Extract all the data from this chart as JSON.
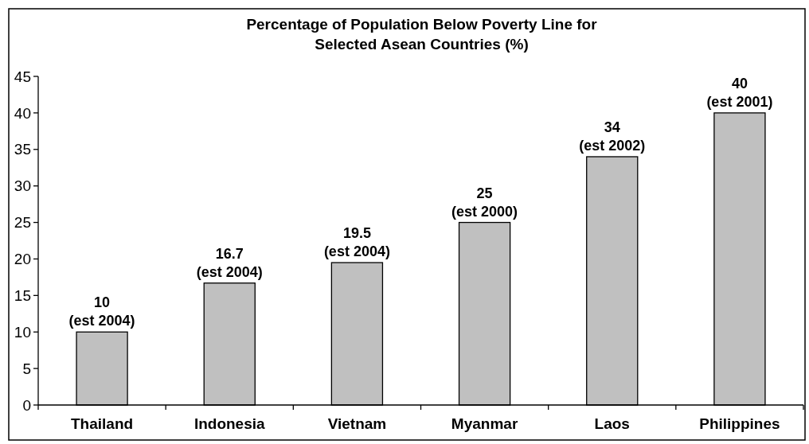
{
  "chart_data": {
    "type": "bar",
    "title": "Percentage of Population Below Poverty Line for\nSelected Asean Countries (%)",
    "categories": [
      "Thailand",
      "Indonesia",
      "Vietnam",
      "Myanmar",
      "Laos",
      "Philippines"
    ],
    "values": [
      10,
      16.7,
      19.5,
      25,
      34,
      40
    ],
    "value_labels": [
      "10\n(est 2004)",
      "16.7\n(est 2004)",
      "19.5\n(est 2004)",
      "25\n(est 2000)",
      "34\n(est 2002)",
      "40\n(est 2001)"
    ],
    "color": "#c0c0c0",
    "ylim": [
      0,
      45
    ],
    "yticks": [
      0,
      5,
      10,
      15,
      20,
      25,
      30,
      35,
      40,
      45
    ],
    "grid": false
  }
}
